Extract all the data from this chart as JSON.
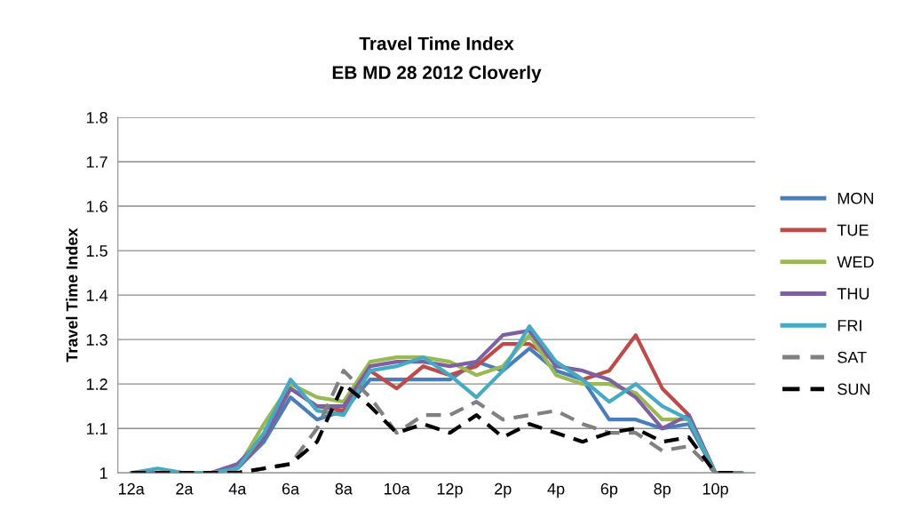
{
  "chart_data": {
    "type": "line",
    "title": "Travel Time Index",
    "subtitle": "EB MD 28 2012 Cloverly",
    "ylabel": "Travel Time Index",
    "categories": [
      "12a",
      null,
      "2a",
      null,
      "4a",
      null,
      "6a",
      null,
      "8a",
      null,
      "10a",
      null,
      "12p",
      null,
      "2p",
      null,
      "4p",
      null,
      "6p",
      null,
      "8p",
      null,
      "10p",
      null
    ],
    "ylim": [
      1,
      1.8
    ],
    "yticks": [
      1,
      1.1,
      1.2,
      1.3,
      1.4,
      1.5,
      1.6,
      1.7,
      1.8
    ],
    "grid": "y",
    "legend": "right",
    "marker": "none",
    "series": [
      {
        "name": "MON",
        "color": "#4a7ebb",
        "line_style": "solid",
        "values": [
          1,
          1,
          1,
          1,
          1.01,
          1.07,
          1.17,
          1.12,
          1.14,
          1.21,
          1.21,
          1.21,
          1.21,
          1.25,
          1.23,
          1.28,
          1.23,
          1.21,
          1.12,
          1.12,
          1.1,
          1.11,
          1,
          1
        ]
      },
      {
        "name": "TUE",
        "color": "#be4b48",
        "line_style": "solid",
        "values": [
          null,
          null,
          null,
          1,
          1.01,
          1.08,
          1.19,
          1.15,
          1.14,
          1.23,
          1.19,
          1.24,
          1.22,
          1.24,
          1.29,
          1.29,
          1.25,
          1.21,
          1.23,
          1.31,
          1.19,
          1.13,
          1,
          1
        ]
      },
      {
        "name": "WED",
        "color": "#98b954",
        "line_style": "solid",
        "values": [
          null,
          null,
          null,
          1,
          1.01,
          1.11,
          1.2,
          1.17,
          1.16,
          1.25,
          1.26,
          1.26,
          1.25,
          1.22,
          1.24,
          1.31,
          1.22,
          1.2,
          1.2,
          1.18,
          1.12,
          1.12,
          1,
          1
        ]
      },
      {
        "name": "THU",
        "color": "#7d60a0",
        "line_style": "solid",
        "values": [
          1,
          1,
          1,
          1,
          1.02,
          1.08,
          1.19,
          1.15,
          1.15,
          1.24,
          1.25,
          1.25,
          1.24,
          1.25,
          1.31,
          1.32,
          1.24,
          1.23,
          1.21,
          1.17,
          1.1,
          1.13,
          1,
          1
        ]
      },
      {
        "name": "FRI",
        "color": "#46aac5",
        "line_style": "solid",
        "values": [
          1,
          1.01,
          1,
          1,
          1.01,
          1.09,
          1.21,
          1.14,
          1.13,
          1.23,
          1.24,
          1.26,
          1.22,
          1.17,
          1.23,
          1.33,
          1.25,
          1.21,
          1.16,
          1.2,
          1.15,
          1.12,
          1,
          1
        ]
      },
      {
        "name": "SAT",
        "color": "#808080",
        "line_style": "dashed",
        "values": [
          1,
          1,
          1,
          1,
          1,
          1.01,
          1.02,
          1.1,
          1.23,
          1.17,
          1.09,
          1.13,
          1.13,
          1.16,
          1.12,
          1.13,
          1.14,
          1.11,
          1.09,
          1.09,
          1.05,
          1.06,
          1,
          1
        ]
      },
      {
        "name": "SUN",
        "color": "#000000",
        "line_style": "dashed",
        "values": [
          1,
          1,
          1,
          1,
          1,
          1.01,
          1.02,
          1.07,
          1.2,
          1.15,
          1.09,
          1.11,
          1.09,
          1.13,
          1.08,
          1.11,
          1.09,
          1.07,
          1.09,
          1.1,
          1.07,
          1.08,
          1,
          1
        ]
      }
    ]
  }
}
